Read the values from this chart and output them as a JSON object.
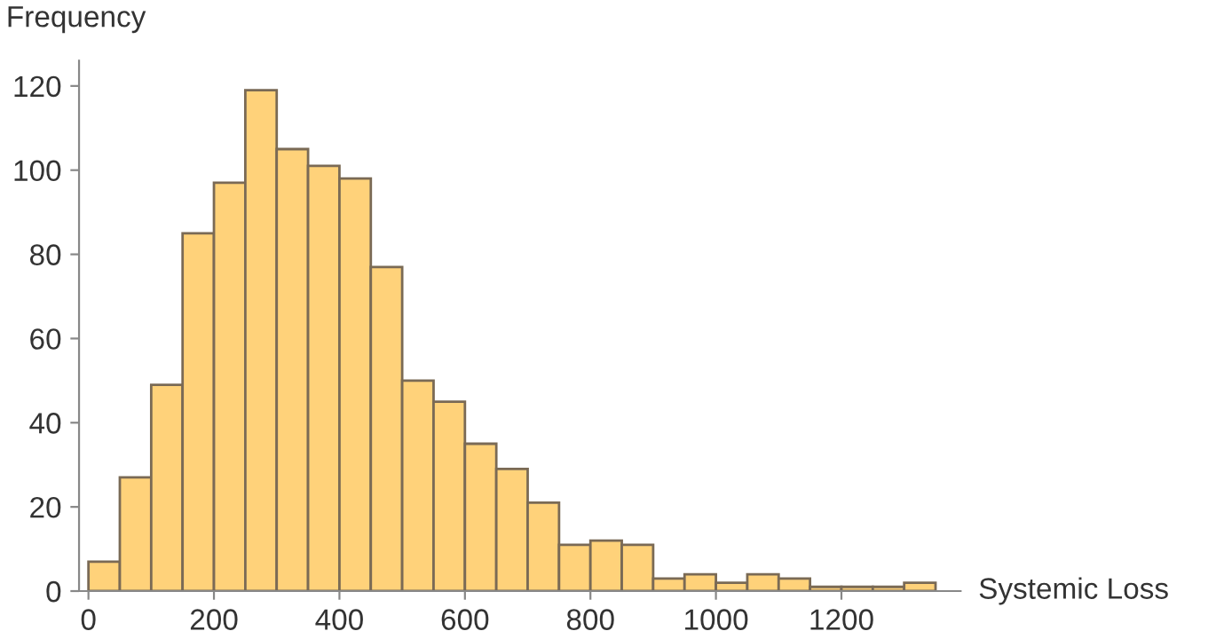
{
  "chart_data": {
    "type": "histogram",
    "xlabel": "Systemic Loss",
    "ylabel": "Frequency",
    "bins": [
      0,
      50,
      100,
      150,
      200,
      250,
      300,
      350,
      400,
      450,
      500,
      550,
      600,
      650,
      700,
      750,
      800,
      850,
      900,
      950,
      1000,
      1050,
      1100,
      1150,
      1200,
      1250,
      1300,
      1350
    ],
    "values": [
      7,
      27,
      49,
      85,
      97,
      119,
      105,
      101,
      98,
      77,
      50,
      45,
      35,
      29,
      21,
      11,
      12,
      11,
      3,
      4,
      2,
      4,
      3,
      1,
      1,
      1,
      2
    ],
    "color": "#ffd27a",
    "xlim": [
      -15,
      1390
    ],
    "xticks": [
      0,
      200,
      400,
      600,
      800,
      1000,
      1200
    ],
    "ylim": [
      0,
      126
    ],
    "yticks": [
      0,
      20,
      40,
      60,
      80,
      100,
      120
    ],
    "grid": false
  }
}
